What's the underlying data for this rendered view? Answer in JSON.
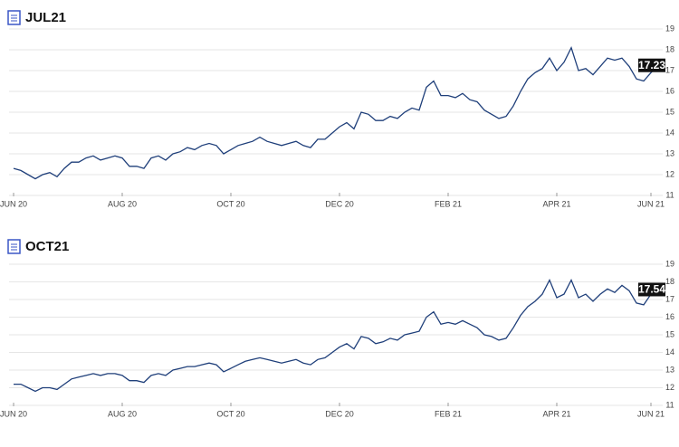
{
  "chart_data": [
    {
      "type": "line",
      "title": "JUL21",
      "color": "#1f3f7a",
      "grid": true,
      "categories": [
        "JUN 20",
        null,
        null,
        null,
        null,
        null,
        null,
        null,
        null,
        null,
        null,
        null,
        null,
        null,
        null,
        "AUG 20",
        null,
        null,
        null,
        null,
        null,
        null,
        null,
        null,
        null,
        null,
        null,
        null,
        null,
        null,
        "OCT 20",
        null,
        null,
        null,
        null,
        null,
        null,
        null,
        null,
        null,
        null,
        null,
        null,
        null,
        null,
        "DEC 20",
        null,
        null,
        null,
        null,
        null,
        null,
        null,
        null,
        null,
        null,
        null,
        null,
        null,
        null,
        "FEB 21",
        null,
        null,
        null,
        null,
        null,
        null,
        null,
        null,
        null,
        null,
        null,
        null,
        null,
        null,
        "APR 21",
        null,
        null,
        null,
        null,
        null,
        null,
        null,
        null,
        null,
        null,
        null,
        null,
        "JUN 21",
        null
      ],
      "values": [
        12.3,
        12.2,
        12.0,
        11.8,
        12.0,
        12.1,
        11.9,
        12.3,
        12.6,
        12.6,
        12.8,
        12.9,
        12.7,
        12.8,
        12.9,
        12.8,
        12.4,
        12.4,
        12.3,
        12.8,
        12.9,
        12.7,
        13.0,
        13.1,
        13.3,
        13.2,
        13.4,
        13.5,
        13.4,
        13.0,
        13.2,
        13.4,
        13.5,
        13.6,
        13.8,
        13.6,
        13.5,
        13.4,
        13.5,
        13.6,
        13.4,
        13.3,
        13.7,
        13.7,
        14.0,
        14.3,
        14.5,
        14.2,
        15.0,
        14.9,
        14.6,
        14.6,
        14.8,
        14.7,
        15.0,
        15.2,
        15.1,
        16.2,
        16.5,
        15.8,
        15.8,
        15.7,
        15.9,
        15.6,
        15.5,
        15.1,
        14.9,
        14.7,
        14.8,
        15.3,
        16.0,
        16.6,
        16.9,
        17.1,
        17.6,
        17.0,
        17.4,
        18.1,
        17.0,
        17.1,
        16.8,
        17.2,
        17.6,
        17.5,
        17.6,
        17.2,
        16.6,
        16.5,
        16.9,
        17.23
      ],
      "ylim": [
        11,
        19
      ],
      "yticks": [
        11,
        12,
        13,
        14,
        15,
        16,
        17,
        18,
        19
      ]
    },
    {
      "type": "line",
      "title": "OCT21",
      "color": "#1f3f7a",
      "grid": true,
      "categories": [
        "JUN 20",
        null,
        null,
        null,
        null,
        null,
        null,
        null,
        null,
        null,
        null,
        null,
        null,
        null,
        null,
        "AUG 20",
        null,
        null,
        null,
        null,
        null,
        null,
        null,
        null,
        null,
        null,
        null,
        null,
        null,
        null,
        "OCT 20",
        null,
        null,
        null,
        null,
        null,
        null,
        null,
        null,
        null,
        null,
        null,
        null,
        null,
        null,
        "DEC 20",
        null,
        null,
        null,
        null,
        null,
        null,
        null,
        null,
        null,
        null,
        null,
        null,
        null,
        null,
        "FEB 21",
        null,
        null,
        null,
        null,
        null,
        null,
        null,
        null,
        null,
        null,
        null,
        null,
        null,
        null,
        "APR 21",
        null,
        null,
        null,
        null,
        null,
        null,
        null,
        null,
        null,
        null,
        null,
        null,
        "JUN 21",
        null
      ],
      "values": [
        12.2,
        12.2,
        12.0,
        11.8,
        12.0,
        12.0,
        11.9,
        12.2,
        12.5,
        12.6,
        12.7,
        12.8,
        12.7,
        12.8,
        12.8,
        12.7,
        12.4,
        12.4,
        12.3,
        12.7,
        12.8,
        12.7,
        13.0,
        13.1,
        13.2,
        13.2,
        13.3,
        13.4,
        13.3,
        12.9,
        13.1,
        13.3,
        13.5,
        13.6,
        13.7,
        13.6,
        13.5,
        13.4,
        13.5,
        13.6,
        13.4,
        13.3,
        13.6,
        13.7,
        14.0,
        14.3,
        14.5,
        14.2,
        14.9,
        14.8,
        14.5,
        14.6,
        14.8,
        14.7,
        15.0,
        15.1,
        15.2,
        16.0,
        16.3,
        15.6,
        15.7,
        15.6,
        15.8,
        15.6,
        15.4,
        15.0,
        14.9,
        14.7,
        14.8,
        15.4,
        16.1,
        16.6,
        16.9,
        17.3,
        18.1,
        17.1,
        17.3,
        18.1,
        17.1,
        17.3,
        16.9,
        17.3,
        17.6,
        17.4,
        17.8,
        17.5,
        16.8,
        16.7,
        17.3,
        17.54
      ],
      "ylim": [
        11,
        19
      ],
      "yticks": [
        11,
        12,
        13,
        14,
        15,
        16,
        17,
        18,
        19
      ]
    }
  ]
}
